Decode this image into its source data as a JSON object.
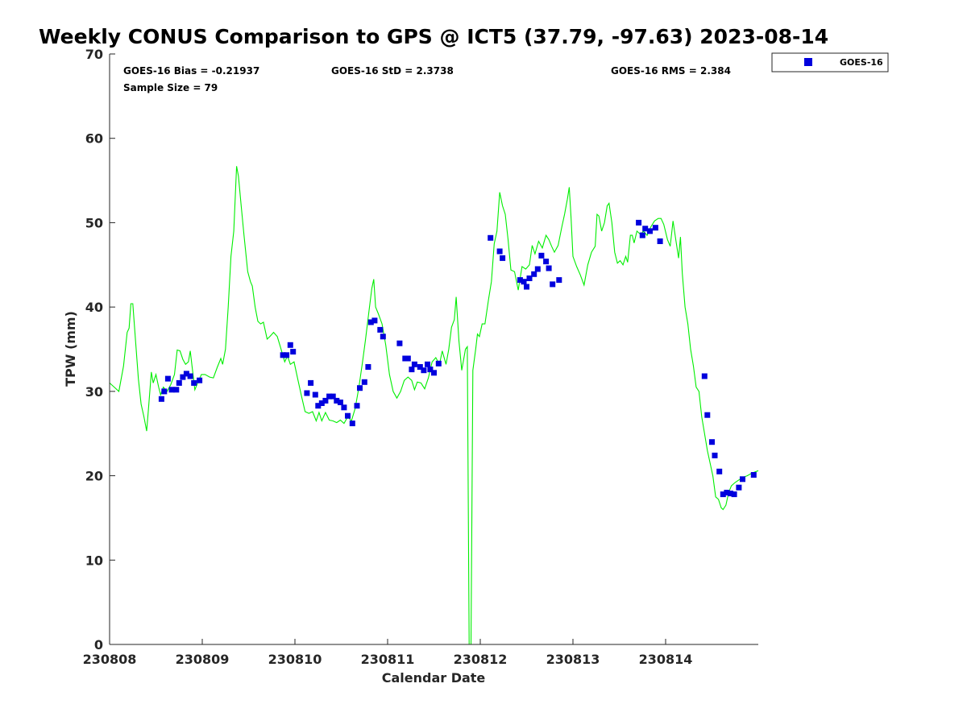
{
  "chart_data": {
    "type": "scatter",
    "title": "Weekly CONUS Comparison to GPS @ ICT5 (37.79, -97.63) 2023-08-14",
    "xlabel": "Calendar Date",
    "ylabel": "TPW (mm)",
    "xlim": [
      0,
      7
    ],
    "ylim": [
      0,
      70
    ],
    "x_ticks": [
      {
        "value": 0,
        "label": "230808"
      },
      {
        "value": 1,
        "label": "230809"
      },
      {
        "value": 2,
        "label": "230810"
      },
      {
        "value": 3,
        "label": "230811"
      },
      {
        "value": 4,
        "label": "230812"
      },
      {
        "value": 5,
        "label": "230813"
      },
      {
        "value": 6,
        "label": "230814"
      }
    ],
    "y_ticks": [
      0,
      10,
      20,
      30,
      40,
      50,
      60,
      70
    ],
    "grid": false,
    "legend_position": "top-right",
    "legend": [
      {
        "label": "GOES-16",
        "color": "#0000dd",
        "marker": "square"
      }
    ],
    "stats": {
      "bias": "GOES-16 Bias = -0.21937",
      "std": "GOES-16 StD = 2.3738",
      "rms": "GOES-16 RMS = 2.384",
      "sample": "Sample Size = 79"
    },
    "series": [
      {
        "name": "GOES-16",
        "kind": "points",
        "color": "#0000dd",
        "points": [
          [
            0.56,
            29.1
          ],
          [
            0.59,
            30.0
          ],
          [
            0.63,
            31.5
          ],
          [
            0.67,
            30.2
          ],
          [
            0.72,
            30.2
          ],
          [
            0.75,
            31.0
          ],
          [
            0.79,
            31.7
          ],
          [
            0.83,
            32.1
          ],
          [
            0.87,
            31.8
          ],
          [
            0.91,
            31.0
          ],
          [
            0.97,
            31.3
          ],
          [
            1.87,
            34.3
          ],
          [
            1.91,
            34.3
          ],
          [
            1.95,
            35.5
          ],
          [
            1.98,
            34.7
          ],
          [
            2.13,
            29.8
          ],
          [
            2.17,
            31.0
          ],
          [
            2.22,
            29.6
          ],
          [
            2.25,
            28.3
          ],
          [
            2.29,
            28.6
          ],
          [
            2.33,
            28.9
          ],
          [
            2.37,
            29.4
          ],
          [
            2.41,
            29.4
          ],
          [
            2.45,
            28.9
          ],
          [
            2.49,
            28.7
          ],
          [
            2.53,
            28.1
          ],
          [
            2.57,
            27.1
          ],
          [
            2.62,
            26.2
          ],
          [
            2.67,
            28.3
          ],
          [
            2.7,
            30.4
          ],
          [
            2.75,
            31.1
          ],
          [
            2.79,
            32.9
          ],
          [
            2.82,
            38.2
          ],
          [
            2.86,
            38.4
          ],
          [
            2.92,
            37.3
          ],
          [
            2.95,
            36.5
          ],
          [
            3.13,
            35.7
          ],
          [
            3.19,
            33.9
          ],
          [
            3.22,
            33.9
          ],
          [
            3.26,
            32.6
          ],
          [
            3.29,
            33.2
          ],
          [
            3.35,
            32.9
          ],
          [
            3.39,
            32.5
          ],
          [
            3.43,
            33.2
          ],
          [
            3.46,
            32.6
          ],
          [
            3.5,
            32.2
          ],
          [
            3.55,
            33.3
          ],
          [
            4.11,
            48.2
          ],
          [
            4.21,
            46.6
          ],
          [
            4.24,
            45.8
          ],
          [
            4.43,
            43.2
          ],
          [
            4.47,
            43.0
          ],
          [
            4.5,
            42.4
          ],
          [
            4.53,
            43.4
          ],
          [
            4.58,
            43.9
          ],
          [
            4.62,
            44.5
          ],
          [
            4.66,
            46.1
          ],
          [
            4.71,
            45.4
          ],
          [
            4.74,
            44.6
          ],
          [
            4.78,
            42.7
          ],
          [
            4.85,
            43.2
          ],
          [
            5.71,
            50.0
          ],
          [
            5.75,
            48.5
          ],
          [
            5.78,
            49.3
          ],
          [
            5.83,
            49.0
          ],
          [
            5.89,
            49.4
          ],
          [
            5.94,
            47.8
          ],
          [
            6.42,
            31.8
          ],
          [
            6.45,
            27.2
          ],
          [
            6.5,
            24.0
          ],
          [
            6.53,
            22.4
          ],
          [
            6.58,
            20.5
          ],
          [
            6.62,
            17.8
          ],
          [
            6.66,
            18.0
          ],
          [
            6.7,
            17.9
          ],
          [
            6.74,
            17.8
          ],
          [
            6.79,
            18.6
          ],
          [
            6.83,
            19.6
          ],
          [
            6.95,
            20.1
          ]
        ]
      },
      {
        "kind": "line",
        "color": "#00ee00",
        "points": [
          [
            0.0,
            31.0
          ],
          [
            0.05,
            30.5
          ],
          [
            0.1,
            30.0
          ],
          [
            0.15,
            33.0
          ],
          [
            0.19,
            37.0
          ],
          [
            0.21,
            37.5
          ],
          [
            0.23,
            40.4
          ],
          [
            0.25,
            40.4
          ],
          [
            0.28,
            36.0
          ],
          [
            0.31,
            31.5
          ],
          [
            0.34,
            28.5
          ],
          [
            0.37,
            27.0
          ],
          [
            0.4,
            25.3
          ],
          [
            0.42,
            28.0
          ],
          [
            0.45,
            32.3
          ],
          [
            0.47,
            31.0
          ],
          [
            0.5,
            32.0
          ],
          [
            0.53,
            30.5
          ],
          [
            0.55,
            29.6
          ],
          [
            0.58,
            30.5
          ],
          [
            0.62,
            30.0
          ],
          [
            0.66,
            30.8
          ],
          [
            0.7,
            32.0
          ],
          [
            0.73,
            34.9
          ],
          [
            0.76,
            34.8
          ],
          [
            0.79,
            33.8
          ],
          [
            0.82,
            33.2
          ],
          [
            0.85,
            33.5
          ],
          [
            0.87,
            34.8
          ],
          [
            0.89,
            33.0
          ],
          [
            0.92,
            30.2
          ],
          [
            0.95,
            31.0
          ],
          [
            0.99,
            32.0
          ],
          [
            1.03,
            32.0
          ],
          [
            1.08,
            31.7
          ],
          [
            1.12,
            31.6
          ],
          [
            1.16,
            32.8
          ],
          [
            1.2,
            33.9
          ],
          [
            1.22,
            33.2
          ],
          [
            1.25,
            35.0
          ],
          [
            1.28,
            40.0
          ],
          [
            1.31,
            46.0
          ],
          [
            1.34,
            49.0
          ],
          [
            1.37,
            56.7
          ],
          [
            1.39,
            55.5
          ],
          [
            1.42,
            52.0
          ],
          [
            1.45,
            48.5
          ],
          [
            1.49,
            44.2
          ],
          [
            1.52,
            43.0
          ],
          [
            1.54,
            42.5
          ],
          [
            1.57,
            40.0
          ],
          [
            1.6,
            38.3
          ],
          [
            1.63,
            38.0
          ],
          [
            1.66,
            38.2
          ],
          [
            1.7,
            36.2
          ],
          [
            1.73,
            36.5
          ],
          [
            1.77,
            37.0
          ],
          [
            1.81,
            36.5
          ],
          [
            1.85,
            35.0
          ],
          [
            1.89,
            33.5
          ],
          [
            1.92,
            34.2
          ],
          [
            1.95,
            33.2
          ],
          [
            1.99,
            33.5
          ],
          [
            2.03,
            31.5
          ],
          [
            2.07,
            29.5
          ],
          [
            2.11,
            27.6
          ],
          [
            2.15,
            27.4
          ],
          [
            2.19,
            27.6
          ],
          [
            2.23,
            26.5
          ],
          [
            2.26,
            27.5
          ],
          [
            2.29,
            26.5
          ],
          [
            2.33,
            27.5
          ],
          [
            2.37,
            26.6
          ],
          [
            2.41,
            26.5
          ],
          [
            2.45,
            26.3
          ],
          [
            2.49,
            26.6
          ],
          [
            2.53,
            26.2
          ],
          [
            2.57,
            27.0
          ],
          [
            2.61,
            26.5
          ],
          [
            2.65,
            28.0
          ],
          [
            2.69,
            30.5
          ],
          [
            2.73,
            33.5
          ],
          [
            2.76,
            36.0
          ],
          [
            2.8,
            39.6
          ],
          [
            2.83,
            42.2
          ],
          [
            2.85,
            43.3
          ],
          [
            2.87,
            40.0
          ],
          [
            2.9,
            39.2
          ],
          [
            2.94,
            38.0
          ],
          [
            2.98,
            35.5
          ],
          [
            3.02,
            32.0
          ],
          [
            3.06,
            30.0
          ],
          [
            3.1,
            29.2
          ],
          [
            3.14,
            30.0
          ],
          [
            3.18,
            31.3
          ],
          [
            3.22,
            31.7
          ],
          [
            3.26,
            31.3
          ],
          [
            3.29,
            30.2
          ],
          [
            3.32,
            31.1
          ],
          [
            3.36,
            31.0
          ],
          [
            3.4,
            30.3
          ],
          [
            3.44,
            31.6
          ],
          [
            3.48,
            33.5
          ],
          [
            3.52,
            34.0
          ],
          [
            3.56,
            33.2
          ],
          [
            3.59,
            34.8
          ],
          [
            3.63,
            33.2
          ],
          [
            3.66,
            35.0
          ],
          [
            3.69,
            37.6
          ],
          [
            3.72,
            38.5
          ],
          [
            3.74,
            41.2
          ],
          [
            3.77,
            36.0
          ],
          [
            3.8,
            32.5
          ],
          [
            3.84,
            35.0
          ],
          [
            3.86,
            35.3
          ],
          [
            3.88,
            0.0
          ],
          [
            3.9,
            0.0
          ],
          [
            3.92,
            32.5
          ],
          [
            3.95,
            35.0
          ],
          [
            3.97,
            36.8
          ],
          [
            3.99,
            36.5
          ],
          [
            4.02,
            38.0
          ],
          [
            4.05,
            38.0
          ],
          [
            4.09,
            41.0
          ],
          [
            4.12,
            43.0
          ],
          [
            4.15,
            47.5
          ],
          [
            4.18,
            49.0
          ],
          [
            4.21,
            53.6
          ],
          [
            4.24,
            52.0
          ],
          [
            4.27,
            51.0
          ],
          [
            4.3,
            48.0
          ],
          [
            4.33,
            44.4
          ],
          [
            4.37,
            44.2
          ],
          [
            4.41,
            42.0
          ],
          [
            4.45,
            44.8
          ],
          [
            4.49,
            44.5
          ],
          [
            4.53,
            45.0
          ],
          [
            4.56,
            47.3
          ],
          [
            4.59,
            46.3
          ],
          [
            4.63,
            47.8
          ],
          [
            4.67,
            47.0
          ],
          [
            4.71,
            48.5
          ],
          [
            4.74,
            48.0
          ],
          [
            4.77,
            47.2
          ],
          [
            4.8,
            46.5
          ],
          [
            4.84,
            47.3
          ],
          [
            4.88,
            49.5
          ],
          [
            4.91,
            51.0
          ],
          [
            4.94,
            52.8
          ],
          [
            4.96,
            54.2
          ],
          [
            4.98,
            50.5
          ],
          [
            5.0,
            46.0
          ],
          [
            5.04,
            44.8
          ],
          [
            5.08,
            43.8
          ],
          [
            5.12,
            42.6
          ],
          [
            5.16,
            45.0
          ],
          [
            5.2,
            46.5
          ],
          [
            5.24,
            47.2
          ],
          [
            5.26,
            51.0
          ],
          [
            5.28,
            50.8
          ],
          [
            5.31,
            49.0
          ],
          [
            5.34,
            50.0
          ],
          [
            5.37,
            52.0
          ],
          [
            5.39,
            52.3
          ],
          [
            5.42,
            50.0
          ],
          [
            5.45,
            46.5
          ],
          [
            5.48,
            45.2
          ],
          [
            5.51,
            45.5
          ],
          [
            5.54,
            45.0
          ],
          [
            5.57,
            46.0
          ],
          [
            5.59,
            45.3
          ],
          [
            5.62,
            48.5
          ],
          [
            5.64,
            48.5
          ],
          [
            5.66,
            47.6
          ],
          [
            5.69,
            49.0
          ],
          [
            5.73,
            48.6
          ],
          [
            5.76,
            49.0
          ],
          [
            5.8,
            48.5
          ],
          [
            5.84,
            49.5
          ],
          [
            5.88,
            50.2
          ],
          [
            5.92,
            50.5
          ],
          [
            5.95,
            50.5
          ],
          [
            5.98,
            49.8
          ],
          [
            6.02,
            48.0
          ],
          [
            6.05,
            47.2
          ],
          [
            6.08,
            50.2
          ],
          [
            6.11,
            48.0
          ],
          [
            6.14,
            45.8
          ],
          [
            6.16,
            48.3
          ],
          [
            6.18,
            44.0
          ],
          [
            6.21,
            40.0
          ],
          [
            6.24,
            38.0
          ],
          [
            6.27,
            35.0
          ],
          [
            6.3,
            33.0
          ],
          [
            6.33,
            30.5
          ],
          [
            6.36,
            30.0
          ],
          [
            6.39,
            27.0
          ],
          [
            6.42,
            25.0
          ],
          [
            6.45,
            23.0
          ],
          [
            6.48,
            21.5
          ],
          [
            6.51,
            20.0
          ],
          [
            6.54,
            17.5
          ],
          [
            6.57,
            17.2
          ],
          [
            6.6,
            16.2
          ],
          [
            6.62,
            16.0
          ],
          [
            6.65,
            16.5
          ],
          [
            6.68,
            18.0
          ],
          [
            6.71,
            18.8
          ],
          [
            6.75,
            19.2
          ],
          [
            6.79,
            19.5
          ],
          [
            6.83,
            19.8
          ],
          [
            6.88,
            20.0
          ],
          [
            6.93,
            20.3
          ],
          [
            7.0,
            20.6
          ]
        ]
      }
    ]
  }
}
